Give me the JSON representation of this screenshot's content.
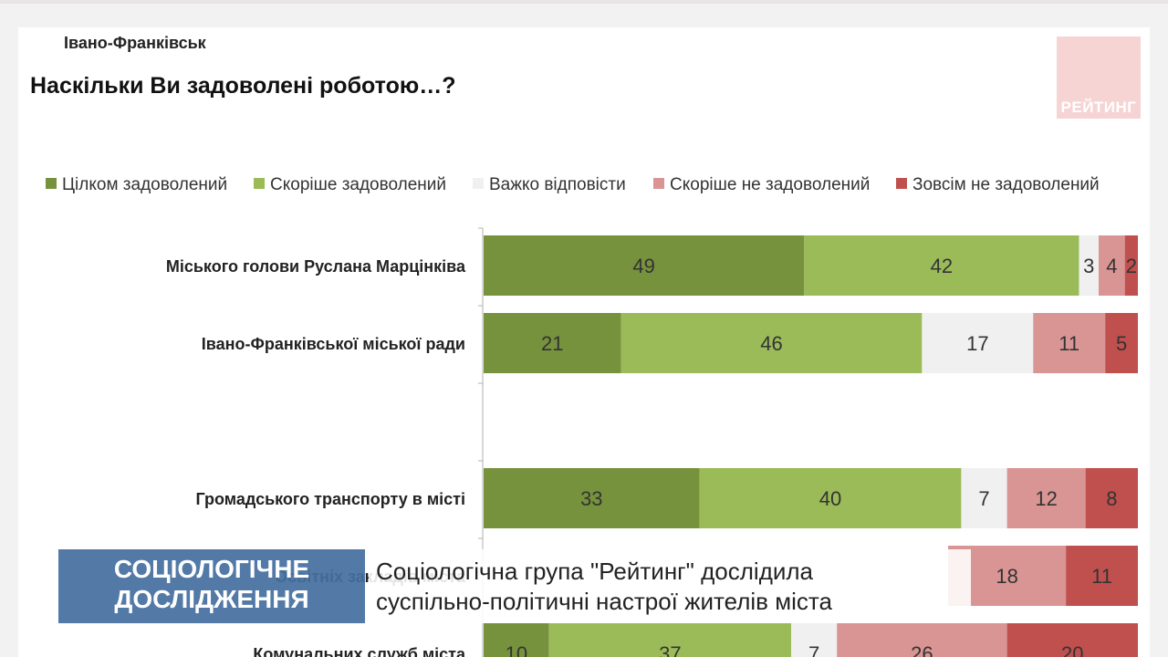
{
  "header": {
    "city": "Івано-Франківськ",
    "question": "Наскільки Ви задоволені роботою…?",
    "logo": "РЕЙТИНГ"
  },
  "chart_data": {
    "type": "bar",
    "orientation": "horizontal-stacked-100",
    "title": "Наскільки Ви задоволені роботою…?",
    "legend_position": "top",
    "series": [
      {
        "name": "Цілком задоволений",
        "color": "#76923c"
      },
      {
        "name": "Скоріше задоволений",
        "color": "#9bbb59"
      },
      {
        "name": "Важко відповісти",
        "color": "#f0f0f0"
      },
      {
        "name": "Скоріше не задоволений",
        "color": "#d99594"
      },
      {
        "name": "Зовсім не задоволений",
        "color": "#c0504d"
      }
    ],
    "categories": [
      "Міського голови Руслана Марцінківа",
      "Івано-Франківської міської ради",
      "",
      "Громадського транспорту в місті",
      "Освітніх закладів міста",
      "Комунальних служб міста"
    ],
    "values": [
      [
        49,
        42,
        3,
        4,
        2
      ],
      [
        21,
        46,
        17,
        11,
        5
      ],
      [
        null,
        null,
        null,
        null,
        null
      ],
      [
        33,
        40,
        7,
        12,
        8
      ],
      [
        null,
        null,
        null,
        18,
        11
      ],
      [
        10,
        37,
        7,
        26,
        20
      ]
    ]
  },
  "lower_third": {
    "tag_line1": "СОЦІОЛОГІЧНЕ",
    "tag_line2": "ДОСЛІДЖЕННЯ",
    "headline_line1": "Соціологічна група \"Рейтинг\" дослідила",
    "headline_line2": "суспільно-політичні настрої жителів міста"
  }
}
